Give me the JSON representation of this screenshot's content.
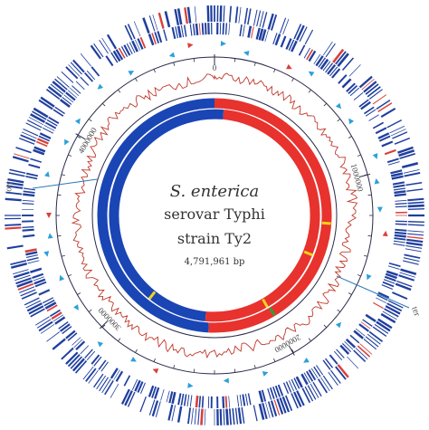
{
  "genome": {
    "species": "S. enterica",
    "serovar": "serovar Typhi",
    "strain": "strain Ty2",
    "length_label": "4,791,961 bp",
    "length_bp": 4791961
  },
  "ticks": [
    {
      "label": "0",
      "bp": 0
    },
    {
      "label": "1000000",
      "bp": 1000000
    },
    {
      "label": "2000000",
      "bp": 2000000
    },
    {
      "label": "3000000",
      "bp": 3000000
    },
    {
      "label": "4000000",
      "bp": 4000000
    }
  ],
  "markers": {
    "ori": "ori",
    "ter": "ter"
  },
  "colors": {
    "gene_blue": "#1f3f9e",
    "replichore_blue": "#1a45b5",
    "replichore_red": "#e8322e",
    "gc_red": "#c0392b",
    "axis": "#2a2a4a",
    "arrow_cyan": "#2aa0d8",
    "arrow_red": "#d8403a",
    "yellow_mark": "#f2d21c",
    "green_mark": "#3a9a3a"
  },
  "replichore_segments": {
    "inner_ring": [
      {
        "from_deg": -175,
        "to_deg": 5,
        "color": "blue"
      },
      {
        "from_deg": 5,
        "to_deg": 185,
        "color": "red"
      }
    ],
    "outer_ring": [
      {
        "from_deg": -177,
        "to_deg": 0,
        "color": "blue"
      },
      {
        "from_deg": 0,
        "to_deg": 183,
        "color": "red"
      }
    ]
  }
}
